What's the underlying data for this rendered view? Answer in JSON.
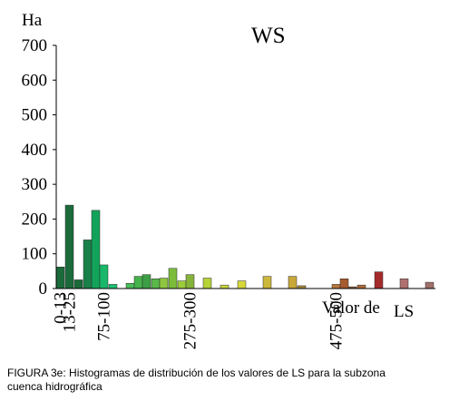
{
  "chart_data": {
    "type": "bar",
    "title": "WS",
    "ylabel": "Ha",
    "xlabel": "Valor de LS",
    "xlabel_parts": [
      "Valor de",
      "LS"
    ],
    "ylim": [
      0,
      700
    ],
    "yticks": [
      0,
      100,
      200,
      300,
      400,
      500,
      600,
      700
    ],
    "xtick_labels": [
      {
        "label": "0-13",
        "after_bar": 0
      },
      {
        "label": "13-25",
        "after_bar": 1
      },
      {
        "label": "75-100",
        "after_bar": 5
      },
      {
        "label": "275-300",
        "after_bar": 14
      },
      {
        "label": "475-500",
        "after_bar": 21
      }
    ],
    "grid": false,
    "legend": "none",
    "bars": [
      {
        "value": 62,
        "color": "#1b6b3a"
      },
      {
        "value": 240,
        "color": "#1b6b3a"
      },
      {
        "value": 25,
        "color": "#1b6b3a"
      },
      {
        "value": 140,
        "color": "#1a8049"
      },
      {
        "value": 225,
        "color": "#12a35a"
      },
      {
        "value": 68,
        "color": "#18b76a"
      },
      {
        "value": 12,
        "color": "#1fbf73"
      },
      {
        "value": 15,
        "color": "#4cbd5b"
      },
      {
        "value": 35,
        "color": "#45b24a"
      },
      {
        "value": 40,
        "color": "#3d9e45"
      },
      {
        "value": 28,
        "color": "#5ab84a"
      },
      {
        "value": 30,
        "color": "#8dc63f"
      },
      {
        "value": 58,
        "color": "#7bbd3a"
      },
      {
        "value": 22,
        "color": "#9ccc3b"
      },
      {
        "value": 40,
        "color": "#86b33a"
      },
      {
        "value": 30,
        "color": "#b5d236"
      },
      {
        "value": 10,
        "color": "#c8d840"
      },
      {
        "value": 22,
        "color": "#d6d83a"
      },
      {
        "value": 35,
        "color": "#cbb83a"
      },
      {
        "value": 35,
        "color": "#c9a83a"
      },
      {
        "value": 8,
        "color": "#a48a3a"
      },
      {
        "value": 12,
        "color": "#b8773d"
      },
      {
        "value": 28,
        "color": "#a65a2e"
      },
      {
        "value": 5,
        "color": "#8a5a3c"
      },
      {
        "value": 10,
        "color": "#b06a3a"
      },
      {
        "value": 48,
        "color": "#a52a2a"
      },
      {
        "value": 28,
        "color": "#b07070"
      },
      {
        "value": 18,
        "color": "#a0706a"
      }
    ]
  },
  "caption": {
    "line1": "FIGURA 3e: Histogramas de distribución de los valores de LS para la subzona",
    "line2": "cuenca hidrográfica"
  }
}
